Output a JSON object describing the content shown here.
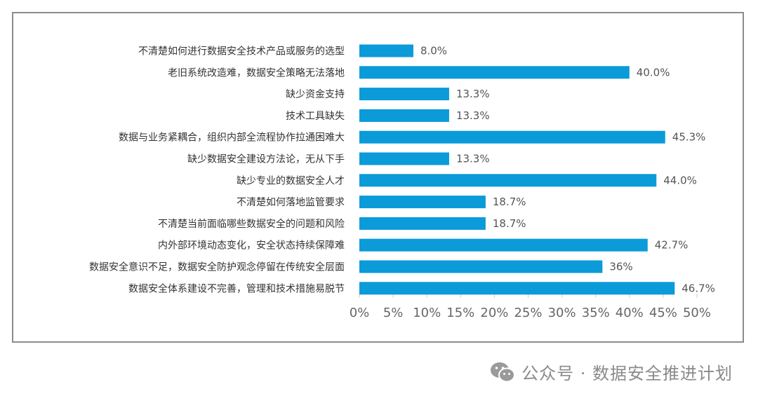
{
  "chart_data": {
    "type": "bar",
    "orientation": "horizontal",
    "categories": [
      "不清楚如何进行数据安全技术产品或服务的选型",
      "老旧系统改造难，数据安全策略无法落地",
      "缺少资金支持",
      "技术工具缺失",
      "数据与业务紧耦合，组织内部全流程协作拉通困难大",
      "缺少数据安全建设方法论，无从下手",
      "缺少专业的数据安全人才",
      "不清楚如何落地监管要求",
      "不清楚当前面临哪些数据安全的问题和风险",
      "内外部环境动态变化，安全状态持续保障难",
      "数据安全意识不足，数据安全防护观念停留在传统安全层面",
      "数据安全体系建设不完善，管理和技术措施易脱节"
    ],
    "values": [
      8.0,
      40.0,
      13.3,
      13.3,
      45.3,
      13.3,
      44.0,
      18.7,
      18.7,
      42.7,
      36,
      46.7
    ],
    "value_labels": [
      "8.0%",
      "40.0%",
      "13.3%",
      "13.3%",
      "45.3%",
      "13.3%",
      "44.0%",
      "18.7%",
      "18.7%",
      "42.7%",
      "36%",
      "46.7%"
    ],
    "x_ticks": [
      "0%",
      "5%",
      "10%",
      "15%",
      "20%",
      "25%",
      "30%",
      "35%",
      "40%",
      "45%",
      "50%"
    ],
    "xlim": [
      0,
      50
    ],
    "grid": false,
    "bar_color": "#0a9bd8"
  },
  "watermark": {
    "icon": "wechat-icon",
    "text": "公众号 · 数据安全推进计划"
  }
}
